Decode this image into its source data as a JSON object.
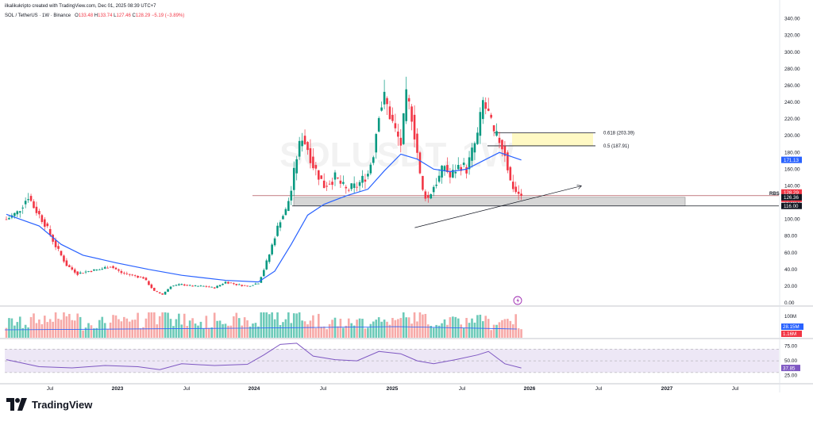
{
  "header": {
    "credit": "ilkalikukripto created with TradingView.com, Dec 01, 2025 08:39 UTC+7",
    "symbol": "SOL / TetherUS · 1W · Binance",
    "open_label": "O",
    "open": "133.48",
    "high_label": "H",
    "high": "133.74",
    "low_label": "L",
    "low": "127.46",
    "close_label": "C",
    "close": "128.29",
    "change": "−5.19 (−3.89%)"
  },
  "watermark": "SOLUSDT, 1W",
  "branding": {
    "name": "TradingView"
  },
  "colors": {
    "up": "#089981",
    "down": "#f23645",
    "ma": "#2962ff",
    "rsi": "#7e57c2",
    "rsi_band": "#ede7f6",
    "zone": "#d6d6d6",
    "fib_zone": "#fff9c4"
  },
  "chart_data": {
    "type": "candlestick",
    "title": "SOL / TetherUS · 1W · Binance",
    "time_axis_labels": [
      "Jul",
      "2023",
      "Jul",
      "2024",
      "Jul",
      "2025",
      "Jul",
      "2026",
      "Jul",
      "2027",
      "Jul"
    ],
    "price_axis": {
      "ylim": [
        0,
        340
      ],
      "ticks": [
        "340.00",
        "320.00",
        "300.00",
        "280.00",
        "260.00",
        "240.00",
        "220.00",
        "200.00",
        "180.00",
        "160.00",
        "140.00",
        "120.00",
        "100.00",
        "80.00",
        "60.00",
        "40.00",
        "20.00",
        "0.00"
      ]
    },
    "price_labels": [
      {
        "text": "171.13",
        "value": 171.13,
        "color": "#2962ff"
      },
      {
        "text": "128.29",
        "value": 128.29,
        "color": "#f23645"
      },
      {
        "text": "6d 23h",
        "value": 128.29,
        "color": "#f23645"
      },
      {
        "text": "126.36",
        "value": 126.36,
        "color": "#131722"
      },
      {
        "text": "116.00",
        "value": 116.0,
        "color": "#131722"
      }
    ],
    "last_price": 128.29,
    "ma_value": 171.13,
    "annotations": {
      "fib_0618": {
        "label": "0.618 (203.39)",
        "value": 203.39
      },
      "fib_05": {
        "label": "0.5 (187.91)",
        "value": 187.91
      },
      "rbs": {
        "label": "RBS",
        "top": 126.36,
        "bottom": 116.0
      }
    },
    "volume_labels": [
      "100M",
      "28.15M",
      "1.16M"
    ],
    "rsi_axis": {
      "ticks": [
        "75.00",
        "50.00",
        "25.00"
      ],
      "value_label": "37.85",
      "band": [
        30,
        70
      ]
    },
    "rsi_value": 37.85,
    "price_path": [
      {
        "x": 0,
        "y": 100
      },
      {
        "x": 2,
        "y": 108
      },
      {
        "x": 4,
        "y": 128
      },
      {
        "x": 5,
        "y": 115
      },
      {
        "x": 7,
        "y": 95
      },
      {
        "x": 9,
        "y": 68
      },
      {
        "x": 11,
        "y": 45
      },
      {
        "x": 13,
        "y": 35
      },
      {
        "x": 15,
        "y": 38
      },
      {
        "x": 17,
        "y": 40
      },
      {
        "x": 19,
        "y": 44
      },
      {
        "x": 21,
        "y": 36
      },
      {
        "x": 23,
        "y": 33
      },
      {
        "x": 25,
        "y": 30
      },
      {
        "x": 27,
        "y": 14
      },
      {
        "x": 28.5,
        "y": 10
      },
      {
        "x": 30,
        "y": 20
      },
      {
        "x": 32,
        "y": 22
      },
      {
        "x": 34,
        "y": 20
      },
      {
        "x": 36,
        "y": 20
      },
      {
        "x": 38,
        "y": 18
      },
      {
        "x": 40,
        "y": 25
      },
      {
        "x": 42,
        "y": 22
      },
      {
        "x": 44,
        "y": 20
      },
      {
        "x": 46,
        "y": 24
      },
      {
        "x": 47,
        "y": 40
      },
      {
        "x": 48,
        "y": 58
      },
      {
        "x": 49,
        "y": 80
      },
      {
        "x": 50,
        "y": 100
      },
      {
        "x": 51,
        "y": 110
      },
      {
        "x": 52,
        "y": 135
      },
      {
        "x": 53,
        "y": 175
      },
      {
        "x": 54,
        "y": 200
      },
      {
        "x": 55,
        "y": 185
      },
      {
        "x": 56,
        "y": 165
      },
      {
        "x": 58,
        "y": 140
      },
      {
        "x": 60,
        "y": 150
      },
      {
        "x": 62,
        "y": 135
      },
      {
        "x": 64,
        "y": 140
      },
      {
        "x": 66,
        "y": 155
      },
      {
        "x": 67,
        "y": 180
      },
      {
        "x": 68,
        "y": 230
      },
      {
        "x": 69,
        "y": 245
      },
      {
        "x": 70,
        "y": 225
      },
      {
        "x": 71,
        "y": 205
      },
      {
        "x": 72,
        "y": 190
      },
      {
        "x": 73,
        "y": 245
      },
      {
        "x": 74,
        "y": 225
      },
      {
        "x": 75,
        "y": 180
      },
      {
        "x": 75.8,
        "y": 135
      },
      {
        "x": 77,
        "y": 125
      },
      {
        "x": 78,
        "y": 140
      },
      {
        "x": 79,
        "y": 150
      },
      {
        "x": 80,
        "y": 165
      },
      {
        "x": 81,
        "y": 150
      },
      {
        "x": 82,
        "y": 160
      },
      {
        "x": 83,
        "y": 165
      },
      {
        "x": 84,
        "y": 160
      },
      {
        "x": 85,
        "y": 180
      },
      {
        "x": 86,
        "y": 200
      },
      {
        "x": 87,
        "y": 240
      },
      {
        "x": 88,
        "y": 225
      },
      {
        "x": 89,
        "y": 200
      },
      {
        "x": 90,
        "y": 195
      },
      {
        "x": 91,
        "y": 180
      },
      {
        "x": 92,
        "y": 145
      },
      {
        "x": 93,
        "y": 133
      },
      {
        "x": 94,
        "y": 128.29
      }
    ],
    "ma_path": [
      {
        "x": 0,
        "y": 106
      },
      {
        "x": 6,
        "y": 92
      },
      {
        "x": 10,
        "y": 70
      },
      {
        "x": 14,
        "y": 57
      },
      {
        "x": 20,
        "y": 48
      },
      {
        "x": 26,
        "y": 40
      },
      {
        "x": 32,
        "y": 33
      },
      {
        "x": 40,
        "y": 27
      },
      {
        "x": 46,
        "y": 25
      },
      {
        "x": 49,
        "y": 38
      },
      {
        "x": 52,
        "y": 70
      },
      {
        "x": 55,
        "y": 105
      },
      {
        "x": 58,
        "y": 118
      },
      {
        "x": 62,
        "y": 128
      },
      {
        "x": 66,
        "y": 136
      },
      {
        "x": 69,
        "y": 158
      },
      {
        "x": 72,
        "y": 178
      },
      {
        "x": 75,
        "y": 172
      },
      {
        "x": 78,
        "y": 160
      },
      {
        "x": 81,
        "y": 157
      },
      {
        "x": 84,
        "y": 160
      },
      {
        "x": 87,
        "y": 170
      },
      {
        "x": 90,
        "y": 180
      },
      {
        "x": 94,
        "y": 171
      }
    ],
    "rsi_path": [
      {
        "x": 0,
        "y": 52
      },
      {
        "x": 6,
        "y": 40
      },
      {
        "x": 12,
        "y": 38
      },
      {
        "x": 18,
        "y": 42
      },
      {
        "x": 24,
        "y": 40
      },
      {
        "x": 28,
        "y": 35
      },
      {
        "x": 32,
        "y": 45
      },
      {
        "x": 38,
        "y": 42
      },
      {
        "x": 44,
        "y": 44
      },
      {
        "x": 47,
        "y": 60
      },
      {
        "x": 50,
        "y": 78
      },
      {
        "x": 53,
        "y": 80
      },
      {
        "x": 56,
        "y": 58
      },
      {
        "x": 60,
        "y": 52
      },
      {
        "x": 64,
        "y": 50
      },
      {
        "x": 68,
        "y": 66
      },
      {
        "x": 72,
        "y": 62
      },
      {
        "x": 75,
        "y": 50
      },
      {
        "x": 78,
        "y": 45
      },
      {
        "x": 82,
        "y": 52
      },
      {
        "x": 86,
        "y": 60
      },
      {
        "x": 88,
        "y": 66
      },
      {
        "x": 91,
        "y": 45
      },
      {
        "x": 94,
        "y": 37.85
      }
    ],
    "trendline": [
      {
        "x": 76,
        "y": 90
      },
      {
        "x": 105,
        "y": 140
      }
    ],
    "grid": false
  }
}
